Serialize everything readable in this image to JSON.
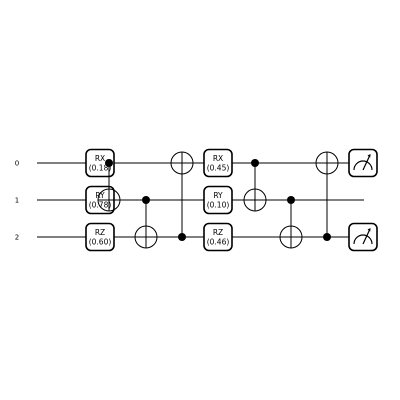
{
  "qubits": [
    "0",
    "1",
    "2"
  ],
  "gates": [
    {
      "id": "g1",
      "type": "rotation",
      "name": "RX",
      "param": "(0.18)",
      "qubit": 0,
      "step": 0
    },
    {
      "id": "g2",
      "type": "rotation",
      "name": "RY",
      "param": "(0.78)",
      "qubit": 1,
      "step": 0
    },
    {
      "id": "g3",
      "type": "rotation",
      "name": "RZ",
      "param": "(0.60)",
      "qubit": 2,
      "step": 0
    },
    {
      "id": "g4",
      "type": "cnot",
      "control": 0,
      "target": 1,
      "step": 1
    },
    {
      "id": "g5",
      "type": "cnot",
      "control": 1,
      "target": 2,
      "step": 2
    },
    {
      "id": "g6",
      "type": "cnot",
      "control": 2,
      "target": 0,
      "step": 3
    },
    {
      "id": "g7",
      "type": "rotation",
      "name": "RX",
      "param": "(0.45)",
      "qubit": 0,
      "step": 4
    },
    {
      "id": "g8",
      "type": "rotation",
      "name": "RY",
      "param": "(0.10)",
      "qubit": 1,
      "step": 4
    },
    {
      "id": "g9",
      "type": "rotation",
      "name": "RZ",
      "param": "(0.46)",
      "qubit": 2,
      "step": 4
    },
    {
      "id": "g10",
      "type": "cnot",
      "control": 0,
      "target": 1,
      "step": 5
    },
    {
      "id": "g11",
      "type": "cnot",
      "control": 1,
      "target": 2,
      "step": 6
    },
    {
      "id": "g12",
      "type": "cnot",
      "control": 2,
      "target": 0,
      "step": 7
    },
    {
      "id": "g13",
      "type": "measure",
      "qubit": 0,
      "step": 8
    },
    {
      "id": "g14",
      "type": "measure",
      "qubit": 2,
      "step": 8
    }
  ]
}
